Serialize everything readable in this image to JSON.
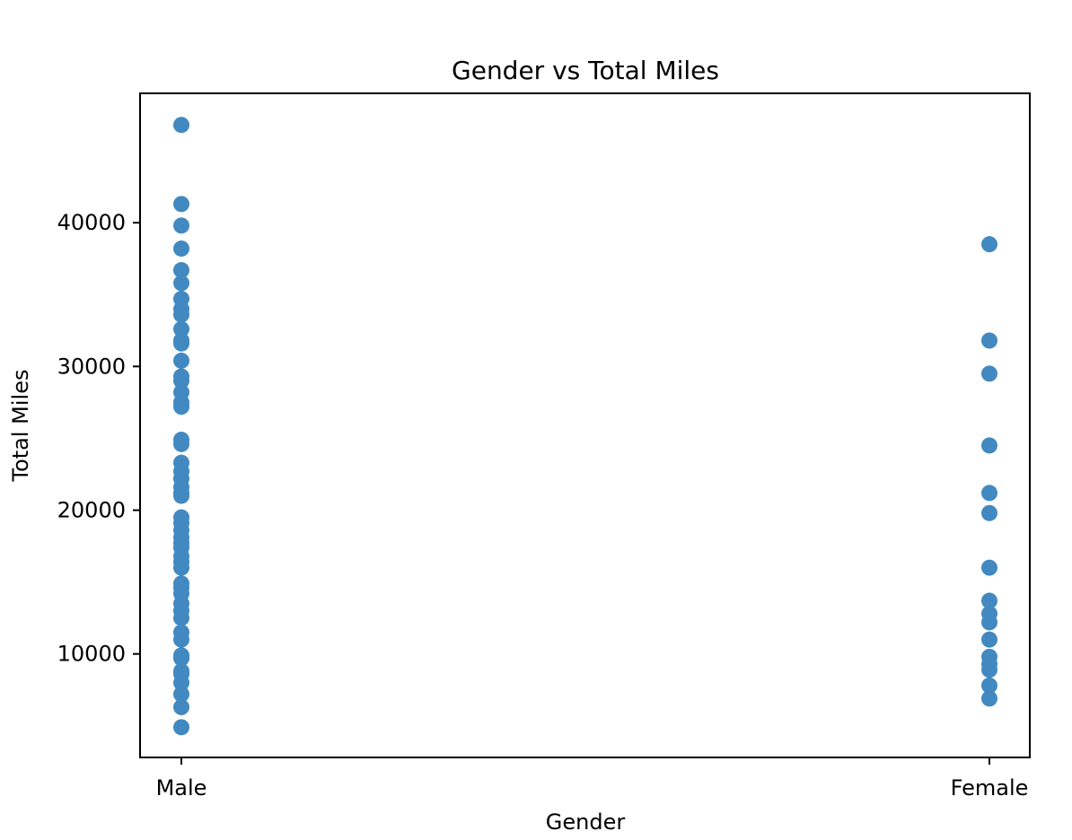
{
  "chart_data": {
    "type": "scatter",
    "title": "Gender vs Total Miles",
    "xlabel": "Gender",
    "ylabel": "Total Miles",
    "categories": [
      "Male",
      "Female"
    ],
    "yticks": [
      10000,
      20000,
      30000,
      40000
    ],
    "ylim": [
      2800,
      49000
    ],
    "grid": false,
    "legend": "none",
    "marker_color": "#4189c0",
    "series": [
      {
        "values": [
          [
            0,
            46800
          ],
          [
            0,
            41300
          ],
          [
            0,
            39800
          ],
          [
            0,
            38200
          ],
          [
            0,
            36700
          ],
          [
            0,
            35800
          ],
          [
            0,
            34700
          ],
          [
            0,
            34000
          ],
          [
            0,
            33600
          ],
          [
            0,
            32600
          ],
          [
            0,
            31800
          ],
          [
            0,
            31600
          ],
          [
            0,
            30400
          ],
          [
            0,
            29300
          ],
          [
            0,
            29000
          ],
          [
            0,
            28200
          ],
          [
            0,
            27500
          ],
          [
            0,
            27200
          ],
          [
            0,
            24900
          ],
          [
            0,
            24600
          ],
          [
            0,
            23300
          ],
          [
            0,
            22700
          ],
          [
            0,
            22200
          ],
          [
            0,
            21600
          ],
          [
            0,
            21200
          ],
          [
            0,
            21000
          ],
          [
            0,
            19500
          ],
          [
            0,
            19100
          ],
          [
            0,
            18600
          ],
          [
            0,
            18100
          ],
          [
            0,
            17700
          ],
          [
            0,
            17400
          ],
          [
            0,
            16800
          ],
          [
            0,
            16400
          ],
          [
            0,
            16000
          ],
          [
            0,
            14900
          ],
          [
            0,
            14600
          ],
          [
            0,
            14200
          ],
          [
            0,
            13500
          ],
          [
            0,
            13000
          ],
          [
            0,
            12500
          ],
          [
            0,
            11500
          ],
          [
            0,
            11000
          ],
          [
            0,
            9900
          ],
          [
            0,
            9700
          ],
          [
            0,
            8800
          ],
          [
            0,
            8600
          ],
          [
            0,
            8000
          ],
          [
            0,
            7200
          ],
          [
            0,
            6300
          ],
          [
            0,
            4900
          ],
          [
            1,
            38500
          ],
          [
            1,
            31800
          ],
          [
            1,
            29500
          ],
          [
            1,
            24500
          ],
          [
            1,
            21200
          ],
          [
            1,
            19800
          ],
          [
            1,
            16000
          ],
          [
            1,
            13700
          ],
          [
            1,
            12800
          ],
          [
            1,
            12200
          ],
          [
            1,
            11000
          ],
          [
            1,
            9800
          ],
          [
            1,
            9300
          ],
          [
            1,
            8900
          ],
          [
            1,
            7800
          ],
          [
            1,
            6900
          ]
        ]
      }
    ]
  }
}
